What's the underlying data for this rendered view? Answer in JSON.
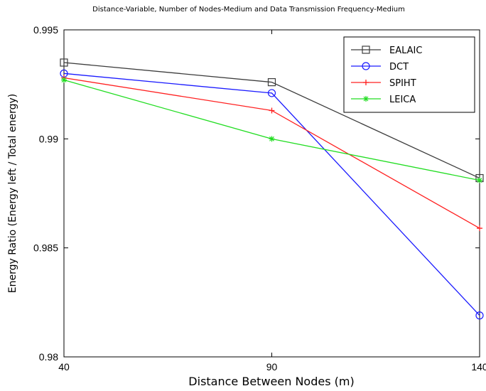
{
  "chart_data": {
    "type": "line",
    "title": "Distance-Variable, Number of Nodes-Medium and Data Transmission Frequency-Medium",
    "xlabel": "Distance Between Nodes (m)",
    "ylabel": "Energy Ratio (Energy left / Total energy)",
    "x": [
      40,
      90,
      140
    ],
    "xlim": [
      40,
      140
    ],
    "ylim": [
      0.98,
      0.995
    ],
    "xticks": [
      "40",
      "90",
      "140"
    ],
    "yticks": [
      "0.98",
      "0.985",
      "0.99",
      "0.995"
    ],
    "grid": false,
    "legend_position": "top-right",
    "series": [
      {
        "name": "EALAIC",
        "values": [
          0.9935,
          0.9926,
          0.9882
        ],
        "color": "#3c3c3c",
        "marker": "square"
      },
      {
        "name": "DCT",
        "values": [
          0.993,
          0.9921,
          0.9819
        ],
        "color": "#1a1aff",
        "marker": "circle"
      },
      {
        "name": "SPIHT",
        "values": [
          0.9928,
          0.9913,
          0.9859
        ],
        "color": "#ff2020",
        "marker": "plus"
      },
      {
        "name": "LEICA",
        "values": [
          0.9927,
          0.99,
          0.9881
        ],
        "color": "#22dd22",
        "marker": "star"
      }
    ]
  }
}
